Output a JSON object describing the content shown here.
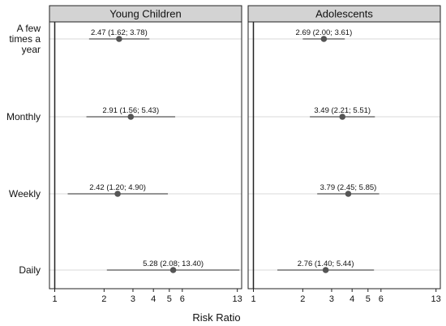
{
  "chart_data": {
    "type": "forest",
    "xlabel": "Risk Ratio",
    "xscale": "log",
    "xlim": [
      0.95,
      13.5
    ],
    "xticks": [
      1,
      2,
      3,
      4,
      5,
      6,
      13
    ],
    "reference_line": 1,
    "grid": "horizontal",
    "rows": [
      "A few\ntimes a\nyear",
      "Monthly",
      "Weekly",
      "Daily"
    ],
    "panels": [
      {
        "title": "Young Children",
        "estimates": [
          {
            "row": "A few times a year",
            "rr": 2.47,
            "lo": 1.62,
            "hi": 3.78,
            "label": "2.47 (1.62; 3.78)"
          },
          {
            "row": "Monthly",
            "rr": 2.91,
            "lo": 1.56,
            "hi": 5.43,
            "label": "2.91 (1.56; 5.43)"
          },
          {
            "row": "Weekly",
            "rr": 2.42,
            "lo": 1.2,
            "hi": 4.9,
            "label": "2.42 (1.20; 4.90)"
          },
          {
            "row": "Daily",
            "rr": 5.28,
            "lo": 2.08,
            "hi": 13.4,
            "label": "5.28 (2.08; 13.40)"
          }
        ]
      },
      {
        "title": "Adolescents",
        "estimates": [
          {
            "row": "A few times a year",
            "rr": 2.69,
            "lo": 2.0,
            "hi": 3.61,
            "label": "2.69 (2.00; 3.61)"
          },
          {
            "row": "Monthly",
            "rr": 3.49,
            "lo": 2.21,
            "hi": 5.51,
            "label": "3.49 (2.21; 5.51)"
          },
          {
            "row": "Weekly",
            "rr": 3.79,
            "lo": 2.45,
            "hi": 5.85,
            "label": "3.79 (2.45; 5.85)"
          },
          {
            "row": "Daily",
            "rr": 2.76,
            "lo": 1.4,
            "hi": 5.44,
            "label": "2.76 (1.40; 5.44)"
          }
        ]
      }
    ],
    "colors": {
      "point": "#555555",
      "ci_line": "#555555",
      "strip": "#d3d3d3",
      "gridline": "#d9d9d9",
      "frame": "#222222"
    }
  }
}
